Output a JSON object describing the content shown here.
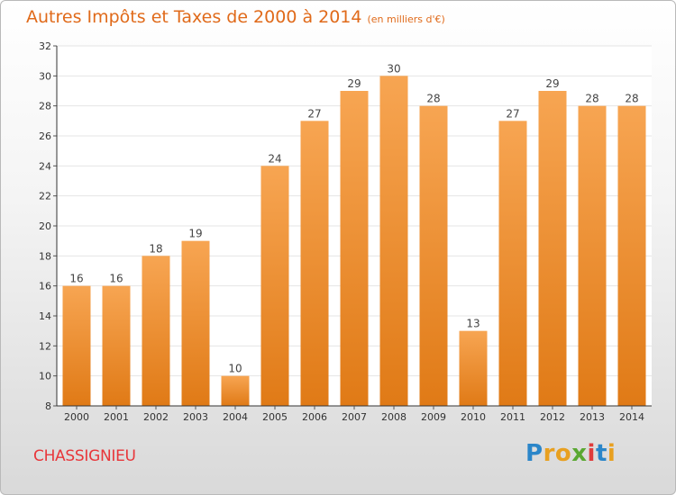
{
  "title": "Autres Impôts et Taxes de 2000 à 2014",
  "subtitle": "(en milliers d'€)",
  "place": "CHASSIGNIEU",
  "brand": {
    "letters": [
      "P",
      "r",
      "o",
      "x",
      "i",
      "t",
      "i"
    ],
    "colors": [
      "#2b86c9",
      "#e8a020",
      "#e8a020",
      "#5aa832",
      "#e03c3c",
      "#2b86c9",
      "#e8a020"
    ]
  },
  "colors": {
    "bar_light": "#f7a552",
    "bar_dark": "#e8801e",
    "accent": "#e06a1a"
  },
  "chart_data": {
    "type": "bar",
    "categories": [
      "2000",
      "2001",
      "2002",
      "2003",
      "2004",
      "2005",
      "2006",
      "2007",
      "2008",
      "2009",
      "2010",
      "2011",
      "2012",
      "2013",
      "2014"
    ],
    "values": [
      16,
      16,
      18,
      19,
      10,
      24,
      27,
      29,
      30,
      28,
      13,
      27,
      29,
      28,
      28
    ],
    "ylim": [
      8,
      32
    ],
    "yticks": [
      8,
      10,
      12,
      14,
      16,
      18,
      20,
      22,
      24,
      26,
      28,
      30,
      32
    ],
    "grid": true,
    "legend": "none"
  }
}
